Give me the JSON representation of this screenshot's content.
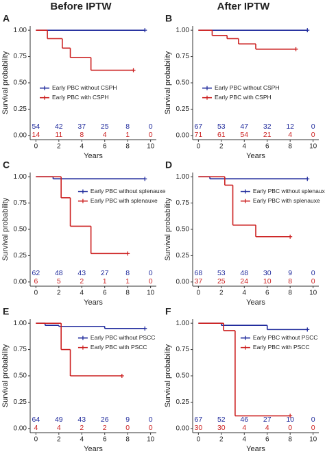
{
  "figure_titles": [
    "Before IPTW",
    "After IPTW"
  ],
  "chart_data": [
    {
      "type": "km",
      "label": "A",
      "ylabel": "Survival probability",
      "xlabel": "Years",
      "xlim": [
        -0.5,
        10.5
      ],
      "ylim": [
        -0.04,
        1.04
      ],
      "xticks": [
        0,
        2,
        4,
        6,
        8,
        10
      ],
      "yticks": [
        {
          "value": 0,
          "label": "0.00"
        },
        {
          "value": 0.25,
          "label": "0.25"
        },
        {
          "value": 0.5,
          "label": "0.50"
        },
        {
          "value": 0.75,
          "label": "0.75"
        },
        {
          "value": 1,
          "label": "1.00"
        }
      ],
      "legend": "center-left",
      "series": [
        {
          "name": "Early PBC without CSPH",
          "color": "#1f2a9c",
          "x": [
            0,
            9.5
          ],
          "values": [
            1,
            1
          ],
          "at_risk": [
            54,
            42,
            37,
            25,
            8,
            0
          ]
        },
        {
          "name": "Early PBC with CSPH",
          "color": "#cc2020",
          "x": [
            0,
            1,
            2.3,
            3,
            4.8,
            8.5
          ],
          "values": [
            1,
            0.92,
            0.83,
            0.74,
            0.62,
            0.62
          ],
          "at_risk": [
            14,
            11,
            8,
            4,
            1,
            0
          ]
        }
      ]
    },
    {
      "type": "km",
      "label": "B",
      "ylabel": "Survival probability",
      "xlabel": "Years",
      "xlim": [
        -0.5,
        10.5
      ],
      "ylim": [
        -0.04,
        1.04
      ],
      "xticks": [
        0,
        2,
        4,
        6,
        8,
        10
      ],
      "yticks": [
        {
          "value": 0,
          "label": "0.00"
        },
        {
          "value": 0.25,
          "label": "0.25"
        },
        {
          "value": 0.5,
          "label": "0.50"
        },
        {
          "value": 0.75,
          "label": "0.75"
        },
        {
          "value": 1,
          "label": "1.00"
        }
      ],
      "legend": "center-left",
      "series": [
        {
          "name": "Early PBC without CSPH",
          "color": "#1f2a9c",
          "x": [
            0,
            9.5
          ],
          "values": [
            1,
            1
          ],
          "at_risk": [
            67,
            53,
            47,
            32,
            12,
            0
          ]
        },
        {
          "name": "Early PBC with CSPH",
          "color": "#cc2020",
          "x": [
            0,
            1.2,
            2.5,
            3.5,
            5,
            8.5
          ],
          "values": [
            1,
            0.95,
            0.92,
            0.87,
            0.82,
            0.82
          ],
          "at_risk": [
            71,
            61,
            54,
            21,
            4,
            0
          ]
        }
      ]
    },
    {
      "type": "km",
      "label": "C",
      "ylabel": "Survival probability",
      "xlabel": "Years",
      "xlim": [
        -0.5,
        10.5
      ],
      "ylim": [
        -0.04,
        1.04
      ],
      "xticks": [
        0,
        2,
        4,
        6,
        8,
        10
      ],
      "yticks": [
        {
          "value": 0,
          "label": "0.00"
        },
        {
          "value": 0.25,
          "label": "0.25"
        },
        {
          "value": 0.5,
          "label": "0.50"
        },
        {
          "value": 0.75,
          "label": "0.75"
        },
        {
          "value": 1,
          "label": "1.00"
        }
      ],
      "legend": "upper-right",
      "series": [
        {
          "name": "Early PBC without splenauxe",
          "color": "#1f2a9c",
          "x": [
            0,
            1.5,
            9.5
          ],
          "values": [
            1,
            0.98,
            0.98
          ],
          "at_risk": [
            62,
            48,
            43,
            27,
            8,
            0
          ]
        },
        {
          "name": "Early PBC with splenauxe",
          "color": "#cc2020",
          "x": [
            0,
            2.2,
            3,
            4.8,
            8
          ],
          "values": [
            1,
            0.8,
            0.53,
            0.27,
            0.27
          ],
          "at_risk": [
            6,
            5,
            2,
            1,
            1,
            0
          ]
        }
      ]
    },
    {
      "type": "km",
      "label": "D",
      "ylabel": "Survival probability",
      "xlabel": "Years",
      "xlim": [
        -0.5,
        10.5
      ],
      "ylim": [
        -0.04,
        1.04
      ],
      "xticks": [
        0,
        2,
        4,
        6,
        8,
        10
      ],
      "yticks": [
        {
          "value": 0,
          "label": "0.00"
        },
        {
          "value": 0.25,
          "label": "0.25"
        },
        {
          "value": 0.5,
          "label": "0.50"
        },
        {
          "value": 0.75,
          "label": "0.75"
        },
        {
          "value": 1,
          "label": "1.00"
        }
      ],
      "legend": "upper-right",
      "series": [
        {
          "name": "Early PBC without splenauxe",
          "color": "#1f2a9c",
          "x": [
            0,
            1,
            9.5
          ],
          "values": [
            1,
            0.98,
            0.98
          ],
          "at_risk": [
            68,
            53,
            48,
            30,
            9,
            0
          ]
        },
        {
          "name": "Early PBC with splenauxe",
          "color": "#cc2020",
          "x": [
            0,
            2.3,
            3,
            5,
            8
          ],
          "values": [
            1,
            0.92,
            0.54,
            0.43,
            0.43
          ],
          "at_risk": [
            37,
            25,
            24,
            10,
            8,
            0
          ]
        }
      ]
    },
    {
      "type": "km",
      "label": "E",
      "ylabel": "Survival probability",
      "xlabel": "Years",
      "xlim": [
        -0.5,
        10.5
      ],
      "ylim": [
        -0.04,
        1.04
      ],
      "xticks": [
        0,
        2,
        4,
        6,
        8,
        10
      ],
      "yticks": [
        {
          "value": 0,
          "label": "0.00"
        },
        {
          "value": 0.25,
          "label": "0.25"
        },
        {
          "value": 0.5,
          "label": "0.50"
        },
        {
          "value": 0.75,
          "label": "0.75"
        },
        {
          "value": 1,
          "label": "1.00"
        }
      ],
      "legend": "upper-right",
      "series": [
        {
          "name": "Early PBC without PSCC",
          "color": "#1f2a9c",
          "x": [
            0,
            0.8,
            2,
            6,
            9.5
          ],
          "values": [
            1,
            0.98,
            0.97,
            0.95,
            0.95
          ],
          "at_risk": [
            64,
            49,
            43,
            26,
            9,
            0
          ]
        },
        {
          "name": "Early PBC with PSCC",
          "color": "#cc2020",
          "x": [
            0,
            2.2,
            3,
            7.5
          ],
          "values": [
            1,
            0.75,
            0.5,
            0.5
          ],
          "at_risk": [
            4,
            4,
            2,
            2,
            0,
            0
          ]
        }
      ]
    },
    {
      "type": "km",
      "label": "F",
      "ylabel": "Survival probability",
      "xlabel": "Years",
      "xlim": [
        -0.5,
        10.5
      ],
      "ylim": [
        -0.04,
        1.04
      ],
      "xticks": [
        0,
        2,
        4,
        6,
        8,
        10
      ],
      "yticks": [
        {
          "value": 0,
          "label": "0.00"
        },
        {
          "value": 0.25,
          "label": "0.25"
        },
        {
          "value": 0.5,
          "label": "0.50"
        },
        {
          "value": 0.75,
          "label": "0.75"
        },
        {
          "value": 1,
          "label": "1.00"
        }
      ],
      "legend": "upper-right",
      "series": [
        {
          "name": "Early PBC without PSCC",
          "color": "#1f2a9c",
          "x": [
            0,
            2,
            6,
            9.5
          ],
          "values": [
            1,
            0.98,
            0.94,
            0.94
          ],
          "at_risk": [
            67,
            52,
            46,
            27,
            10,
            0
          ]
        },
        {
          "name": "Early PBC with PSCC",
          "color": "#cc2020",
          "x": [
            0,
            2.2,
            3.2,
            8
          ],
          "values": [
            1,
            0.93,
            0.12,
            0.12
          ],
          "at_risk": [
            30,
            30,
            4,
            4,
            0,
            0
          ]
        }
      ]
    }
  ]
}
